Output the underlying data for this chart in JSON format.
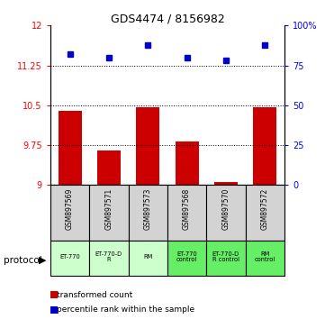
{
  "title": "GDS4474 / 8156982",
  "samples": [
    "GSM897569",
    "GSM897571",
    "GSM897573",
    "GSM897568",
    "GSM897570",
    "GSM897572"
  ],
  "red_values": [
    10.4,
    9.65,
    10.47,
    9.82,
    9.05,
    10.47
  ],
  "blue_values": [
    82,
    80,
    88,
    80,
    78,
    88
  ],
  "ylim_left": [
    9,
    12
  ],
  "ylim_right": [
    0,
    100
  ],
  "yticks_left": [
    9,
    9.75,
    10.5,
    11.25,
    12
  ],
  "yticks_right": [
    0,
    25,
    50,
    75,
    100
  ],
  "ytick_labels_left": [
    "9",
    "9.75",
    "10.5",
    "11.25",
    "12"
  ],
  "ytick_labels_right": [
    "0",
    "25",
    "50",
    "75",
    "100%"
  ],
  "hlines": [
    9.75,
    10.5,
    11.25
  ],
  "protocols": [
    "ET-770",
    "ET-770-D\nR",
    "RM",
    "ET-770\ncontrol",
    "ET-770-D\nR control",
    "RM\ncontrol"
  ],
  "bar_color": "#cc0000",
  "dot_color": "#0000cc",
  "bar_width": 0.6,
  "protocol_label": "protocol",
  "legend_red": "transformed count",
  "legend_blue": "percentile rank within the sample",
  "sample_box_color": "#d3d3d3",
  "protocol_box_color_light": "#ccffcc",
  "protocol_box_color_dark": "#66ee66"
}
